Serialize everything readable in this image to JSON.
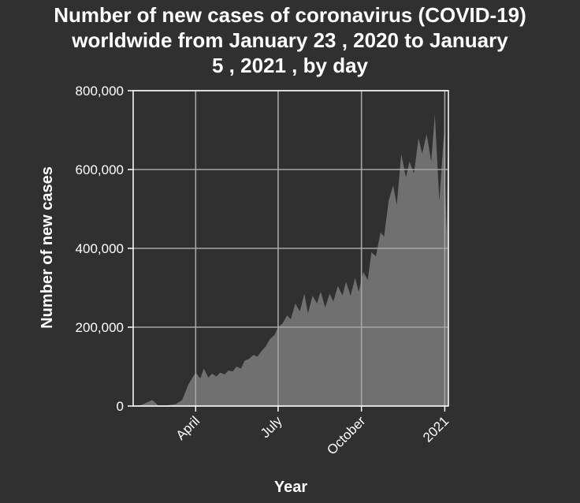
{
  "chart_data": {
    "type": "area",
    "title_lines": [
      "Number of new cases of coronavirus (COVID-19)",
      "worldwide from January 23 , 2020 to January",
      "5 , 2021 , by day"
    ],
    "xlabel": "Year",
    "ylabel": "Number of new cases",
    "x_range": [
      "2020-01-23",
      "2021-01-05"
    ],
    "ylim": [
      0,
      800000
    ],
    "yticks": [
      {
        "value": 0,
        "label": "0"
      },
      {
        "value": 200000,
        "label": "200,000"
      },
      {
        "value": 400000,
        "label": "400,000"
      },
      {
        "value": 600000,
        "label": "600,000"
      },
      {
        "value": 800000,
        "label": "800,000"
      }
    ],
    "xticks": [
      {
        "date": "2020-04-01",
        "label": "April"
      },
      {
        "date": "2020-07-01",
        "label": "July"
      },
      {
        "date": "2020-10-01",
        "label": "October"
      },
      {
        "date": "2021-01-01",
        "label": "2021"
      }
    ],
    "grid": true,
    "colors": {
      "background": "#303030",
      "fill": "#707070",
      "grid": "#a6a6a6",
      "text": "#ffffff"
    },
    "series": [
      {
        "x": [
          "2020-01-23",
          "2020-02-01",
          "2020-02-13",
          "2020-02-20",
          "2020-03-01",
          "2020-03-10",
          "2020-03-17",
          "2020-03-24",
          "2020-04-01",
          "2020-04-06",
          "2020-04-10",
          "2020-04-15",
          "2020-04-19",
          "2020-04-24",
          "2020-04-28",
          "2020-05-03",
          "2020-05-07",
          "2020-05-12",
          "2020-05-16",
          "2020-05-21",
          "2020-05-25",
          "2020-05-30",
          "2020-06-04",
          "2020-06-08",
          "2020-06-13",
          "2020-06-17",
          "2020-06-22",
          "2020-06-27",
          "2020-07-01",
          "2020-07-06",
          "2020-07-11",
          "2020-07-15",
          "2020-07-20",
          "2020-07-25",
          "2020-07-30",
          "2020-08-03",
          "2020-08-08",
          "2020-08-13",
          "2020-08-17",
          "2020-08-22",
          "2020-08-27",
          "2020-08-31",
          "2020-09-05",
          "2020-09-10",
          "2020-09-14",
          "2020-09-19",
          "2020-09-24",
          "2020-09-28",
          "2020-10-03",
          "2020-10-08",
          "2020-10-12",
          "2020-10-17",
          "2020-10-22",
          "2020-10-26",
          "2020-10-31",
          "2020-11-05",
          "2020-11-09",
          "2020-11-14",
          "2020-11-19",
          "2020-11-23",
          "2020-11-28",
          "2020-12-03",
          "2020-12-07",
          "2020-12-12",
          "2020-12-17",
          "2020-12-21",
          "2020-12-26",
          "2020-12-31",
          "2021-01-03",
          "2021-01-05"
        ],
        "values": [
          600,
          2500,
          15000,
          1000,
          2000,
          5000,
          15000,
          55000,
          85000,
          70000,
          95000,
          72000,
          82000,
          75000,
          85000,
          80000,
          90000,
          88000,
          100000,
          95000,
          115000,
          120000,
          130000,
          125000,
          140000,
          150000,
          170000,
          180000,
          200000,
          210000,
          230000,
          220000,
          260000,
          240000,
          285000,
          235000,
          280000,
          260000,
          290000,
          250000,
          285000,
          265000,
          305000,
          280000,
          315000,
          280000,
          325000,
          290000,
          340000,
          320000,
          390000,
          380000,
          440000,
          430000,
          520000,
          560000,
          510000,
          640000,
          580000,
          620000,
          590000,
          680000,
          640000,
          690000,
          620000,
          740000,
          520000,
          690000,
          440000,
          770000
        ]
      }
    ]
  }
}
